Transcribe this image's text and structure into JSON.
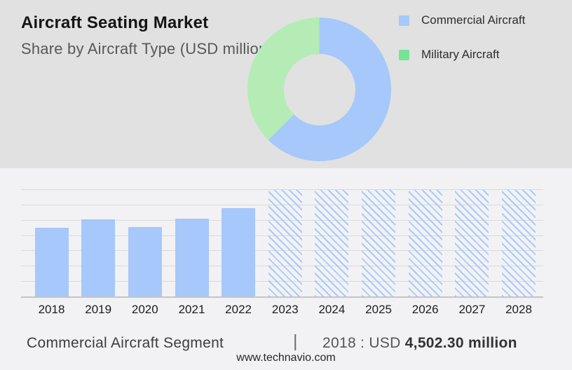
{
  "header": {
    "title": "Aircraft Seating Market",
    "subtitle": "Share by Aircraft Type (USD million)"
  },
  "legend": [
    {
      "label": "Commercial Aircraft",
      "color": "#a6c8fa"
    },
    {
      "label": "Military Aircraft",
      "color": "#77e397"
    }
  ],
  "colors": {
    "top_background": "#e1e1e1",
    "bottom_background": "#f2f2f4",
    "bar_blue": "#a6c8fa",
    "donut_blue": "#a6c8fa",
    "donut_green": "#b5ecb5",
    "legend_green": "#77e397",
    "gridline": "#dadadd",
    "baseline": "#c3c3c8"
  },
  "chart_data": [
    {
      "type": "pie",
      "variant": "donut",
      "title": "Share by Aircraft Type (USD million)",
      "labels": [
        "Commercial Aircraft",
        "Military Aircraft"
      ],
      "values_percent": [
        62.5,
        37.5
      ],
      "colors": [
        "#a6c8fa",
        "#b5ecb5"
      ],
      "start_angle_deg": 0,
      "direction": "clockwise",
      "legend_position": "right"
    },
    {
      "type": "bar",
      "title": "",
      "xlabel": "",
      "ylabel": "",
      "unit": "USD million",
      "categories": [
        "2018",
        "2019",
        "2020",
        "2021",
        "2022",
        "2023",
        "2024",
        "2025",
        "2026",
        "2027",
        "2028"
      ],
      "values": [
        4502.3,
        5050,
        4515,
        5065,
        5785,
        null,
        null,
        null,
        null,
        null,
        null
      ],
      "forecast_categories": [
        "2023",
        "2024",
        "2025",
        "2026",
        "2027",
        "2028"
      ],
      "value_note": "Only 2018 is labeled (USD 4,502.30 million); 2019-2022 estimated from bar heights; 2023-2028 are forecast placeholders drawn as full-height hatched columns",
      "ylim": [
        0,
        7000
      ],
      "gridline_count": 8,
      "grid": true,
      "legend_position": "none"
    }
  ],
  "footer": {
    "segment": "Commercial Aircraft Segment",
    "separator": "|",
    "value_prefix": "2018 : USD",
    "value_bold": "4,502.30 million",
    "website": "www.technavio.com"
  }
}
